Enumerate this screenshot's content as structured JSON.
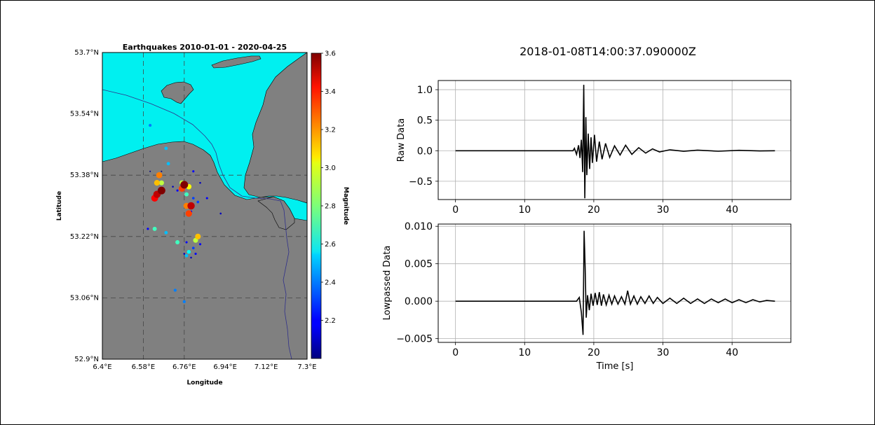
{
  "chart_data": [
    {
      "type": "scatter",
      "title": "Earthquakes 2010-01-01 - 2020-04-25",
      "xlabel": "Longitude",
      "ylabel": "Latitude",
      "xlim": [
        6.4,
        7.3
      ],
      "ylim": [
        52.9,
        53.7
      ],
      "x_ticks": [
        "6.4°E",
        "6.58°E",
        "6.76°E",
        "6.94°E",
        "7.12°E",
        "7.3°E"
      ],
      "y_ticks": [
        "52.9°N",
        "53.06°N",
        "53.22°N",
        "53.38°N",
        "53.54°N",
        "53.7°N"
      ],
      "gridlines_lon": [
        6.58,
        6.76
      ],
      "gridlines_lat": [
        53.06,
        53.22,
        53.38
      ],
      "colorbar": {
        "label": "Magnitude",
        "range": [
          2.0,
          3.6
        ],
        "ticks": [
          "2.2",
          "2.4",
          "2.6",
          "2.8",
          "3.0",
          "3.2",
          "3.4",
          "3.6"
        ],
        "colormap": "jet"
      },
      "colors": {
        "sea": "#00f0f0",
        "land": "#808080"
      },
      "points": [
        {
          "lon": 6.61,
          "lat": 53.51,
          "mag": 2.4
        },
        {
          "lon": 6.68,
          "lat": 53.45,
          "mag": 2.5
        },
        {
          "lon": 6.69,
          "lat": 53.41,
          "mag": 2.5
        },
        {
          "lon": 6.61,
          "lat": 53.39,
          "mag": 2.0
        },
        {
          "lon": 6.66,
          "lat": 53.39,
          "mag": 2.0
        },
        {
          "lon": 6.65,
          "lat": 53.38,
          "mag": 3.2
        },
        {
          "lon": 6.64,
          "lat": 53.36,
          "mag": 3.1
        },
        {
          "lon": 6.66,
          "lat": 53.36,
          "mag": 2.9
        },
        {
          "lon": 6.75,
          "lat": 53.36,
          "mag": 2.9
        },
        {
          "lon": 6.76,
          "lat": 53.355,
          "mag": 3.6
        },
        {
          "lon": 6.78,
          "lat": 53.35,
          "mag": 3.0
        },
        {
          "lon": 6.75,
          "lat": 53.345,
          "mag": 3.3
        },
        {
          "lon": 6.66,
          "lat": 53.34,
          "mag": 3.6
        },
        {
          "lon": 6.64,
          "lat": 53.33,
          "mag": 3.5
        },
        {
          "lon": 6.63,
          "lat": 53.32,
          "mag": 3.4
        },
        {
          "lon": 6.71,
          "lat": 53.35,
          "mag": 2.1
        },
        {
          "lon": 6.73,
          "lat": 53.34,
          "mag": 2.2
        },
        {
          "lon": 6.77,
          "lat": 53.33,
          "mag": 2.7
        },
        {
          "lon": 6.8,
          "lat": 53.32,
          "mag": 2.3
        },
        {
          "lon": 6.82,
          "lat": 53.31,
          "mag": 2.3
        },
        {
          "lon": 6.77,
          "lat": 53.3,
          "mag": 3.2
        },
        {
          "lon": 6.79,
          "lat": 53.3,
          "mag": 3.5
        },
        {
          "lon": 6.79,
          "lat": 53.285,
          "mag": 2.2
        },
        {
          "lon": 6.78,
          "lat": 53.28,
          "mag": 3.3
        },
        {
          "lon": 6.8,
          "lat": 53.39,
          "mag": 2.2
        },
        {
          "lon": 6.83,
          "lat": 53.36,
          "mag": 2.1
        },
        {
          "lon": 6.86,
          "lat": 53.32,
          "mag": 2.2
        },
        {
          "lon": 6.92,
          "lat": 53.28,
          "mag": 2.1
        },
        {
          "lon": 6.6,
          "lat": 53.24,
          "mag": 2.2
        },
        {
          "lon": 6.63,
          "lat": 53.24,
          "mag": 2.7
        },
        {
          "lon": 6.68,
          "lat": 53.23,
          "mag": 2.5
        },
        {
          "lon": 6.82,
          "lat": 53.22,
          "mag": 3.1
        },
        {
          "lon": 6.81,
          "lat": 53.21,
          "mag": 2.9
        },
        {
          "lon": 6.83,
          "lat": 53.2,
          "mag": 2.2
        },
        {
          "lon": 6.73,
          "lat": 53.205,
          "mag": 2.7
        },
        {
          "lon": 6.77,
          "lat": 53.205,
          "mag": 2.2
        },
        {
          "lon": 6.78,
          "lat": 53.18,
          "mag": 2.6
        },
        {
          "lon": 6.77,
          "lat": 53.17,
          "mag": 2.5
        },
        {
          "lon": 6.76,
          "lat": 53.175,
          "mag": 2.1
        },
        {
          "lon": 6.81,
          "lat": 53.175,
          "mag": 2.2
        },
        {
          "lon": 6.79,
          "lat": 53.165,
          "mag": 2.1
        },
        {
          "lon": 6.8,
          "lat": 53.19,
          "mag": 2.3
        },
        {
          "lon": 6.72,
          "lat": 53.08,
          "mag": 2.4
        },
        {
          "lon": 6.76,
          "lat": 53.05,
          "mag": 2.4
        }
      ]
    },
    {
      "type": "line",
      "title": "2018-01-08T14:00:37.090000Z",
      "xlabel": "",
      "ylabel": "Raw Data",
      "xlim": [
        -2.5,
        48.5
      ],
      "ylim": [
        -0.8,
        1.15
      ],
      "x_ticks": [
        "0",
        "10",
        "20",
        "30",
        "40"
      ],
      "y_ticks": [
        "−0.5",
        "0.0",
        "0.5",
        "1.0"
      ],
      "x_tick_values": [
        0,
        10,
        20,
        30,
        40
      ],
      "y_tick_values": [
        -0.5,
        0.0,
        0.5,
        1.0
      ],
      "grid": true,
      "series": [
        {
          "x": [
            0,
            17.0,
            17.2,
            17.5,
            17.8,
            18.0,
            18.2,
            18.4,
            18.55,
            18.7,
            18.85,
            19.0,
            19.2,
            19.4,
            19.6,
            19.8,
            20.1,
            20.4,
            20.8,
            21.2,
            21.7,
            22.3,
            23.0,
            23.8,
            24.6,
            25.5,
            26.5,
            27.5,
            28.5,
            29.5,
            31,
            33,
            35,
            38,
            41,
            44,
            46.2
          ],
          "y": [
            0.0,
            0.0,
            0.04,
            -0.06,
            0.09,
            -0.12,
            0.18,
            -0.35,
            1.08,
            -0.78,
            0.55,
            -0.4,
            0.28,
            -0.3,
            0.22,
            -0.2,
            0.26,
            -0.18,
            0.15,
            -0.14,
            0.12,
            -0.11,
            0.08,
            -0.07,
            0.09,
            -0.06,
            0.05,
            -0.04,
            0.03,
            -0.02,
            0.015,
            -0.01,
            0.01,
            -0.008,
            0.006,
            -0.004,
            0.0
          ]
        }
      ]
    },
    {
      "type": "line",
      "xlabel": "Time [s]",
      "ylabel": "Lowpassed Data",
      "xlim": [
        -2.5,
        48.5
      ],
      "ylim": [
        -0.0055,
        0.0103
      ],
      "x_ticks": [
        "0",
        "10",
        "20",
        "30",
        "40"
      ],
      "y_ticks": [
        "−0.005",
        "0.000",
        "0.005",
        "0.010"
      ],
      "x_tick_values": [
        0,
        10,
        20,
        30,
        40
      ],
      "y_tick_values": [
        -0.005,
        0.0,
        0.005,
        0.01
      ],
      "grid": true,
      "series": [
        {
          "x": [
            0,
            17.5,
            17.9,
            18.2,
            18.45,
            18.6,
            18.75,
            18.9,
            19.1,
            19.35,
            19.6,
            19.9,
            20.2,
            20.5,
            20.8,
            21.1,
            21.4,
            21.8,
            22.2,
            22.6,
            23.0,
            23.5,
            24.0,
            24.5,
            24.9,
            25.3,
            25.8,
            26.3,
            26.8,
            27.4,
            28.0,
            28.6,
            29.2,
            30.0,
            31,
            32,
            33,
            34,
            35,
            36,
            37,
            38,
            39,
            40,
            41,
            42,
            43,
            44,
            45,
            46.2
          ],
          "y": [
            0.0,
            0.0,
            0.0005,
            -0.0015,
            -0.0045,
            0.0094,
            0.0045,
            -0.0022,
            0.0008,
            -0.0012,
            0.001,
            -0.0006,
            0.0011,
            -0.0005,
            0.0012,
            -0.0006,
            0.0009,
            -0.0005,
            0.0008,
            -0.0004,
            0.0007,
            -0.0004,
            0.0006,
            -0.0004,
            0.0014,
            -0.0004,
            0.0007,
            -0.0004,
            0.0006,
            -0.0003,
            0.0007,
            -0.0003,
            0.0005,
            -0.0003,
            0.0004,
            -0.0003,
            0.0004,
            -0.0003,
            0.0003,
            -0.0003,
            0.0003,
            -0.0002,
            0.0003,
            -0.0002,
            0.0002,
            -0.0002,
            0.0002,
            -0.0001,
            0.0001,
            0.0
          ]
        }
      ]
    }
  ]
}
